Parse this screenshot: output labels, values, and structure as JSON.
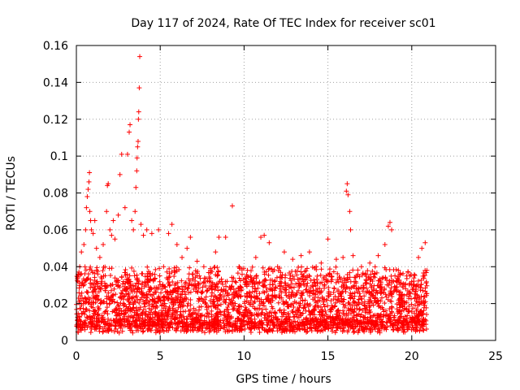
{
  "chart_data": {
    "type": "scatter",
    "title": "Day 117 of 2024, Rate Of TEC Index for receiver sc01",
    "xlabel": "GPS time / hours",
    "ylabel": "ROTI / TECUs",
    "xlim": [
      0,
      25
    ],
    "ylim": [
      0,
      0.16
    ],
    "xticks": [
      "0",
      "5",
      "10",
      "15",
      "20",
      "25"
    ],
    "yticks": [
      "0",
      "0.02",
      "0.04",
      "0.06",
      "0.08",
      "0.1",
      "0.12",
      "0.14",
      "0.16"
    ],
    "grid": true,
    "marker": "+",
    "color": "#ff0000",
    "series": [
      {
        "name": "ROTI",
        "points": [
          [
            0.1,
            0.036
          ],
          [
            0.2,
            0.04
          ],
          [
            0.3,
            0.048
          ],
          [
            0.45,
            0.052
          ],
          [
            0.55,
            0.06
          ],
          [
            0.6,
            0.072
          ],
          [
            0.65,
            0.078
          ],
          [
            0.7,
            0.082
          ],
          [
            0.75,
            0.086
          ],
          [
            0.78,
            0.091
          ],
          [
            0.8,
            0.07
          ],
          [
            0.85,
            0.065
          ],
          [
            0.9,
            0.06
          ],
          [
            1.0,
            0.058
          ],
          [
            1.1,
            0.065
          ],
          [
            1.2,
            0.05
          ],
          [
            1.4,
            0.045
          ],
          [
            1.6,
            0.052
          ],
          [
            1.8,
            0.07
          ],
          [
            1.85,
            0.084
          ],
          [
            1.9,
            0.085
          ],
          [
            2.0,
            0.06
          ],
          [
            2.1,
            0.057
          ],
          [
            2.2,
            0.065
          ],
          [
            2.3,
            0.055
          ],
          [
            2.5,
            0.068
          ],
          [
            2.6,
            0.09
          ],
          [
            2.7,
            0.101
          ],
          [
            2.9,
            0.072
          ],
          [
            3.05,
            0.101
          ],
          [
            3.15,
            0.113
          ],
          [
            3.2,
            0.117
          ],
          [
            3.3,
            0.065
          ],
          [
            3.4,
            0.06
          ],
          [
            3.5,
            0.07
          ],
          [
            3.55,
            0.083
          ],
          [
            3.6,
            0.092
          ],
          [
            3.62,
            0.099
          ],
          [
            3.65,
            0.105
          ],
          [
            3.68,
            0.108
          ],
          [
            3.7,
            0.12
          ],
          [
            3.72,
            0.124
          ],
          [
            3.75,
            0.137
          ],
          [
            3.78,
            0.154
          ],
          [
            3.85,
            0.063
          ],
          [
            4.0,
            0.057
          ],
          [
            4.2,
            0.06
          ],
          [
            4.5,
            0.058
          ],
          [
            4.9,
            0.06
          ],
          [
            5.2,
            0.04
          ],
          [
            5.5,
            0.058
          ],
          [
            5.7,
            0.063
          ],
          [
            6.0,
            0.052
          ],
          [
            6.3,
            0.045
          ],
          [
            6.6,
            0.05
          ],
          [
            6.8,
            0.056
          ],
          [
            7.2,
            0.043
          ],
          [
            7.6,
            0.04
          ],
          [
            8.0,
            0.038
          ],
          [
            8.3,
            0.048
          ],
          [
            8.5,
            0.056
          ],
          [
            8.9,
            0.056
          ],
          [
            9.3,
            0.073
          ],
          [
            9.7,
            0.04
          ],
          [
            10.2,
            0.038
          ],
          [
            10.7,
            0.045
          ],
          [
            11.0,
            0.056
          ],
          [
            11.2,
            0.057
          ],
          [
            11.5,
            0.053
          ],
          [
            12.0,
            0.04
          ],
          [
            12.4,
            0.048
          ],
          [
            12.9,
            0.044
          ],
          [
            13.4,
            0.046
          ],
          [
            13.9,
            0.048
          ],
          [
            14.3,
            0.04
          ],
          [
            14.6,
            0.042
          ],
          [
            15.0,
            0.055
          ],
          [
            15.5,
            0.044
          ],
          [
            15.9,
            0.045
          ],
          [
            16.1,
            0.081
          ],
          [
            16.15,
            0.085
          ],
          [
            16.2,
            0.079
          ],
          [
            16.3,
            0.07
          ],
          [
            16.35,
            0.06
          ],
          [
            16.5,
            0.046
          ],
          [
            17.0,
            0.04
          ],
          [
            17.5,
            0.042
          ],
          [
            18.0,
            0.046
          ],
          [
            18.4,
            0.052
          ],
          [
            18.6,
            0.062
          ],
          [
            18.7,
            0.064
          ],
          [
            18.8,
            0.06
          ],
          [
            19.2,
            0.038
          ],
          [
            19.7,
            0.035
          ],
          [
            20.1,
            0.03
          ],
          [
            20.4,
            0.045
          ],
          [
            20.6,
            0.05
          ],
          [
            20.8,
            0.053
          ],
          [
            20.9,
            0.038
          ]
        ]
      }
    ]
  }
}
